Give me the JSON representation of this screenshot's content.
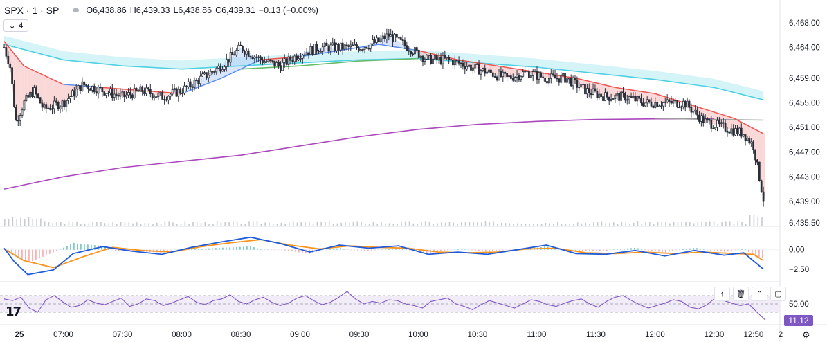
{
  "header": {
    "symbol": "SPX · 1 · SP",
    "o_label": "O",
    "o_value": "6,438.86",
    "h_label": "H",
    "h_value": "6,439.33",
    "l_label": "L",
    "l_value": "6,438.86",
    "c_label": "C",
    "c_value": "6,439.31",
    "change": "−0.13 (−0.00%)"
  },
  "collapse_count": "4",
  "rsi_value": "11.12",
  "colors": {
    "candle": "#2a2e39",
    "ema_fast_fill_bear": "#f7a8a8",
    "ema_fast_fill_bull": "#a8c6f5",
    "ema_line_red": "#ef5350",
    "ema_line_blue": "#5b8def",
    "ema_cyan": "#4dd0e1",
    "ema_green": "#66bb6a",
    "vwap_purple": "#ab47bc",
    "sma_gray": "#9e9e9e",
    "macd": "#1e5bdc",
    "signal": "#f7931a",
    "hist_pos": "#80cbc4",
    "hist_neg": "#f7b2b2",
    "rsi": "#7e57c2",
    "rsi_band": "#ede7f6"
  },
  "chart_data": [
    {
      "type": "candlestick",
      "x_ticks": [
        "25",
        "07:00",
        "07:30",
        "08:00",
        "08:30",
        "09:00",
        "09:30",
        "10:00",
        "10:30",
        "11:00",
        "11:30",
        "12:00",
        "12:30",
        "12:50",
        "2"
      ],
      "y_ticks": [
        "6,468.00",
        "6,464.00",
        "6,459.00",
        "6,455.00",
        "6,451.00",
        "6,447.00",
        "6,443.00",
        "6,439.00",
        "6,435.50"
      ],
      "ylim": [
        6435.5,
        6468
      ],
      "close_path": [
        [
          "06:30",
          6464
        ],
        [
          "06:33",
          6461
        ],
        [
          "06:36",
          6452
        ],
        [
          "06:40",
          6455
        ],
        [
          "06:45",
          6457
        ],
        [
          "06:50",
          6454
        ],
        [
          "07:00",
          6455
        ],
        [
          "07:10",
          6458
        ],
        [
          "07:20",
          6457
        ],
        [
          "07:30",
          6456
        ],
        [
          "07:40",
          6457
        ],
        [
          "07:50",
          6456
        ],
        [
          "08:00",
          6457
        ],
        [
          "08:10",
          6459
        ],
        [
          "08:20",
          6461
        ],
        [
          "08:30",
          6464
        ],
        [
          "08:40",
          6462
        ],
        [
          "08:50",
          6461
        ],
        [
          "09:00",
          6463
        ],
        [
          "09:10",
          6464
        ],
        [
          "09:20",
          6464
        ],
        [
          "09:30",
          6464
        ],
        [
          "09:40",
          6465
        ],
        [
          "09:45",
          6466
        ],
        [
          "09:55",
          6464
        ],
        [
          "10:05",
          6462
        ],
        [
          "10:15",
          6462
        ],
        [
          "10:25",
          6461
        ],
        [
          "10:35",
          6460
        ],
        [
          "10:45",
          6459
        ],
        [
          "10:55",
          6460
        ],
        [
          "11:05",
          6459
        ],
        [
          "11:15",
          6459
        ],
        [
          "11:25",
          6457
        ],
        [
          "11:35",
          6456
        ],
        [
          "11:45",
          6456
        ],
        [
          "11:55",
          6455
        ],
        [
          "12:05",
          6455
        ],
        [
          "12:15",
          6455
        ],
        [
          "12:25",
          6452
        ],
        [
          "12:35",
          6451
        ],
        [
          "12:45",
          6450
        ],
        [
          "12:50",
          6448
        ],
        [
          "12:55",
          6439.31
        ]
      ],
      "ema_fast": [
        [
          "06:30",
          6465
        ],
        [
          "06:40",
          6461
        ],
        [
          "07:00",
          6458
        ],
        [
          "07:20",
          6457.5
        ],
        [
          "07:40",
          6457
        ],
        [
          "08:00",
          6456.5
        ],
        [
          "08:20",
          6459
        ],
        [
          "08:40",
          6462
        ],
        [
          "09:00",
          6462.5
        ],
        [
          "09:20",
          6463.5
        ],
        [
          "09:40",
          6464.5
        ],
        [
          "10:00",
          6463.5
        ],
        [
          "10:20",
          6462
        ],
        [
          "10:40",
          6461
        ],
        [
          "11:00",
          6460
        ],
        [
          "11:20",
          6459
        ],
        [
          "11:40",
          6457.5
        ],
        [
          "12:00",
          6456.5
        ],
        [
          "12:20",
          6454.5
        ],
        [
          "12:40",
          6452.5
        ],
        [
          "12:55",
          6450
        ]
      ],
      "ema_cyan": [
        [
          "06:30",
          6464.5
        ],
        [
          "07:00",
          6462
        ],
        [
          "07:30",
          6461
        ],
        [
          "08:00",
          6460.5
        ],
        [
          "08:30",
          6461
        ],
        [
          "09:00",
          6461.5
        ],
        [
          "09:30",
          6462
        ],
        [
          "10:00",
          6462.2
        ],
        [
          "10:30",
          6461.5
        ],
        [
          "11:00",
          6460.8
        ],
        [
          "11:30",
          6459.8
        ],
        [
          "12:00",
          6458.8
        ],
        [
          "12:30",
          6457.5
        ],
        [
          "12:55",
          6455.5
        ]
      ],
      "ema_green": [
        [
          "08:30",
          6460.5
        ],
        [
          "09:00",
          6461
        ],
        [
          "09:30",
          6461.8
        ],
        [
          "10:00",
          6462.2
        ]
      ],
      "sma_gray": [
        [
          "12:00",
          6452.5
        ],
        [
          "12:30",
          6452.3
        ],
        [
          "12:55",
          6452.2
        ]
      ],
      "vwap": [
        [
          "06:30",
          6441
        ],
        [
          "07:00",
          6443
        ],
        [
          "07:30",
          6444.5
        ],
        [
          "08:00",
          6445.5
        ],
        [
          "08:30",
          6446.5
        ],
        [
          "09:00",
          6448
        ],
        [
          "09:30",
          6449.5
        ],
        [
          "10:00",
          6450.7
        ],
        [
          "10:30",
          6451.5
        ],
        [
          "11:00",
          6452
        ],
        [
          "11:30",
          6452.3
        ],
        [
          "12:00",
          6452.4
        ],
        [
          "12:30",
          6452.4
        ]
      ]
    },
    {
      "type": "line",
      "name": "MACD",
      "y_ticks": [
        "0.00",
        "−2.50"
      ],
      "ylim": [
        -3.5,
        2.2
      ],
      "macd": [
        [
          "06:30",
          0.2
        ],
        [
          "06:35",
          -1.5
        ],
        [
          "06:42",
          -3.2
        ],
        [
          "06:55",
          -2.6
        ],
        [
          "07:05",
          -0.5
        ],
        [
          "07:20",
          0.4
        ],
        [
          "07:35",
          -0.2
        ],
        [
          "07:50",
          -0.6
        ],
        [
          "08:05",
          0.3
        ],
        [
          "08:20",
          1
        ],
        [
          "08:35",
          1.6
        ],
        [
          "08:50",
          0.8
        ],
        [
          "09:05",
          -0.3
        ],
        [
          "09:20",
          0.6
        ],
        [
          "09:35",
          0.2
        ],
        [
          "09:50",
          0.5
        ],
        [
          "10:05",
          -0.6
        ],
        [
          "10:20",
          -0.3
        ],
        [
          "10:35",
          -0.6
        ],
        [
          "10:50",
          0
        ],
        [
          "11:05",
          0.6
        ],
        [
          "11:20",
          -0.5
        ],
        [
          "11:35",
          -0.6
        ],
        [
          "11:50",
          -0.1
        ],
        [
          "12:05",
          -0.8
        ],
        [
          "12:20",
          -0.1
        ],
        [
          "12:35",
          -0.7
        ],
        [
          "12:45",
          -0.4
        ],
        [
          "12:55",
          -2.5
        ]
      ],
      "signal": [
        [
          "06:30",
          0.1
        ],
        [
          "06:40",
          -1.4
        ],
        [
          "06:55",
          -2.3
        ],
        [
          "07:10",
          -0.9
        ],
        [
          "07:25",
          0.3
        ],
        [
          "07:40",
          -0.1
        ],
        [
          "07:55",
          -0.3
        ],
        [
          "08:10",
          0.4
        ],
        [
          "08:25",
          0.9
        ],
        [
          "08:40",
          1.3
        ],
        [
          "08:55",
          0.6
        ],
        [
          "09:10",
          0.1
        ],
        [
          "09:25",
          0.5
        ],
        [
          "09:40",
          0.3
        ],
        [
          "09:55",
          0.2
        ],
        [
          "10:10",
          -0.3
        ],
        [
          "10:25",
          -0.4
        ],
        [
          "10:40",
          -0.3
        ],
        [
          "10:55",
          0.1
        ],
        [
          "11:10",
          0.2
        ],
        [
          "11:25",
          -0.4
        ],
        [
          "11:40",
          -0.5
        ],
        [
          "11:55",
          -0.3
        ],
        [
          "12:10",
          -0.5
        ],
        [
          "12:25",
          -0.3
        ],
        [
          "12:40",
          -0.5
        ],
        [
          "12:50",
          -0.6
        ],
        [
          "12:55",
          -1.4
        ]
      ]
    },
    {
      "type": "line",
      "name": "RSI",
      "y_ticks": [
        "50.00"
      ],
      "ylim": [
        5,
        95
      ],
      "bands": [
        30,
        70
      ],
      "values_start": "06:30",
      "rsi": [
        62,
        58,
        66,
        40,
        30,
        60,
        70,
        55,
        42,
        46,
        60,
        52,
        48,
        56,
        64,
        44,
        50,
        62,
        58,
        46,
        52,
        60,
        68,
        54,
        48,
        58,
        62,
        72,
        56,
        50,
        60,
        66,
        54,
        46,
        52,
        64,
        70,
        58,
        48,
        54,
        66,
        80,
        62,
        50,
        56,
        52,
        60,
        58,
        50,
        46,
        40,
        56,
        60,
        64,
        50,
        44,
        36,
        48,
        58,
        52,
        46,
        40,
        50,
        60,
        56,
        48,
        44,
        52,
        58,
        62,
        50,
        42,
        56,
        66,
        70,
        58,
        48,
        40,
        46,
        52,
        60,
        56,
        42,
        38,
        48,
        64,
        58,
        52,
        46,
        50,
        30,
        11.12
      ]
    }
  ]
}
